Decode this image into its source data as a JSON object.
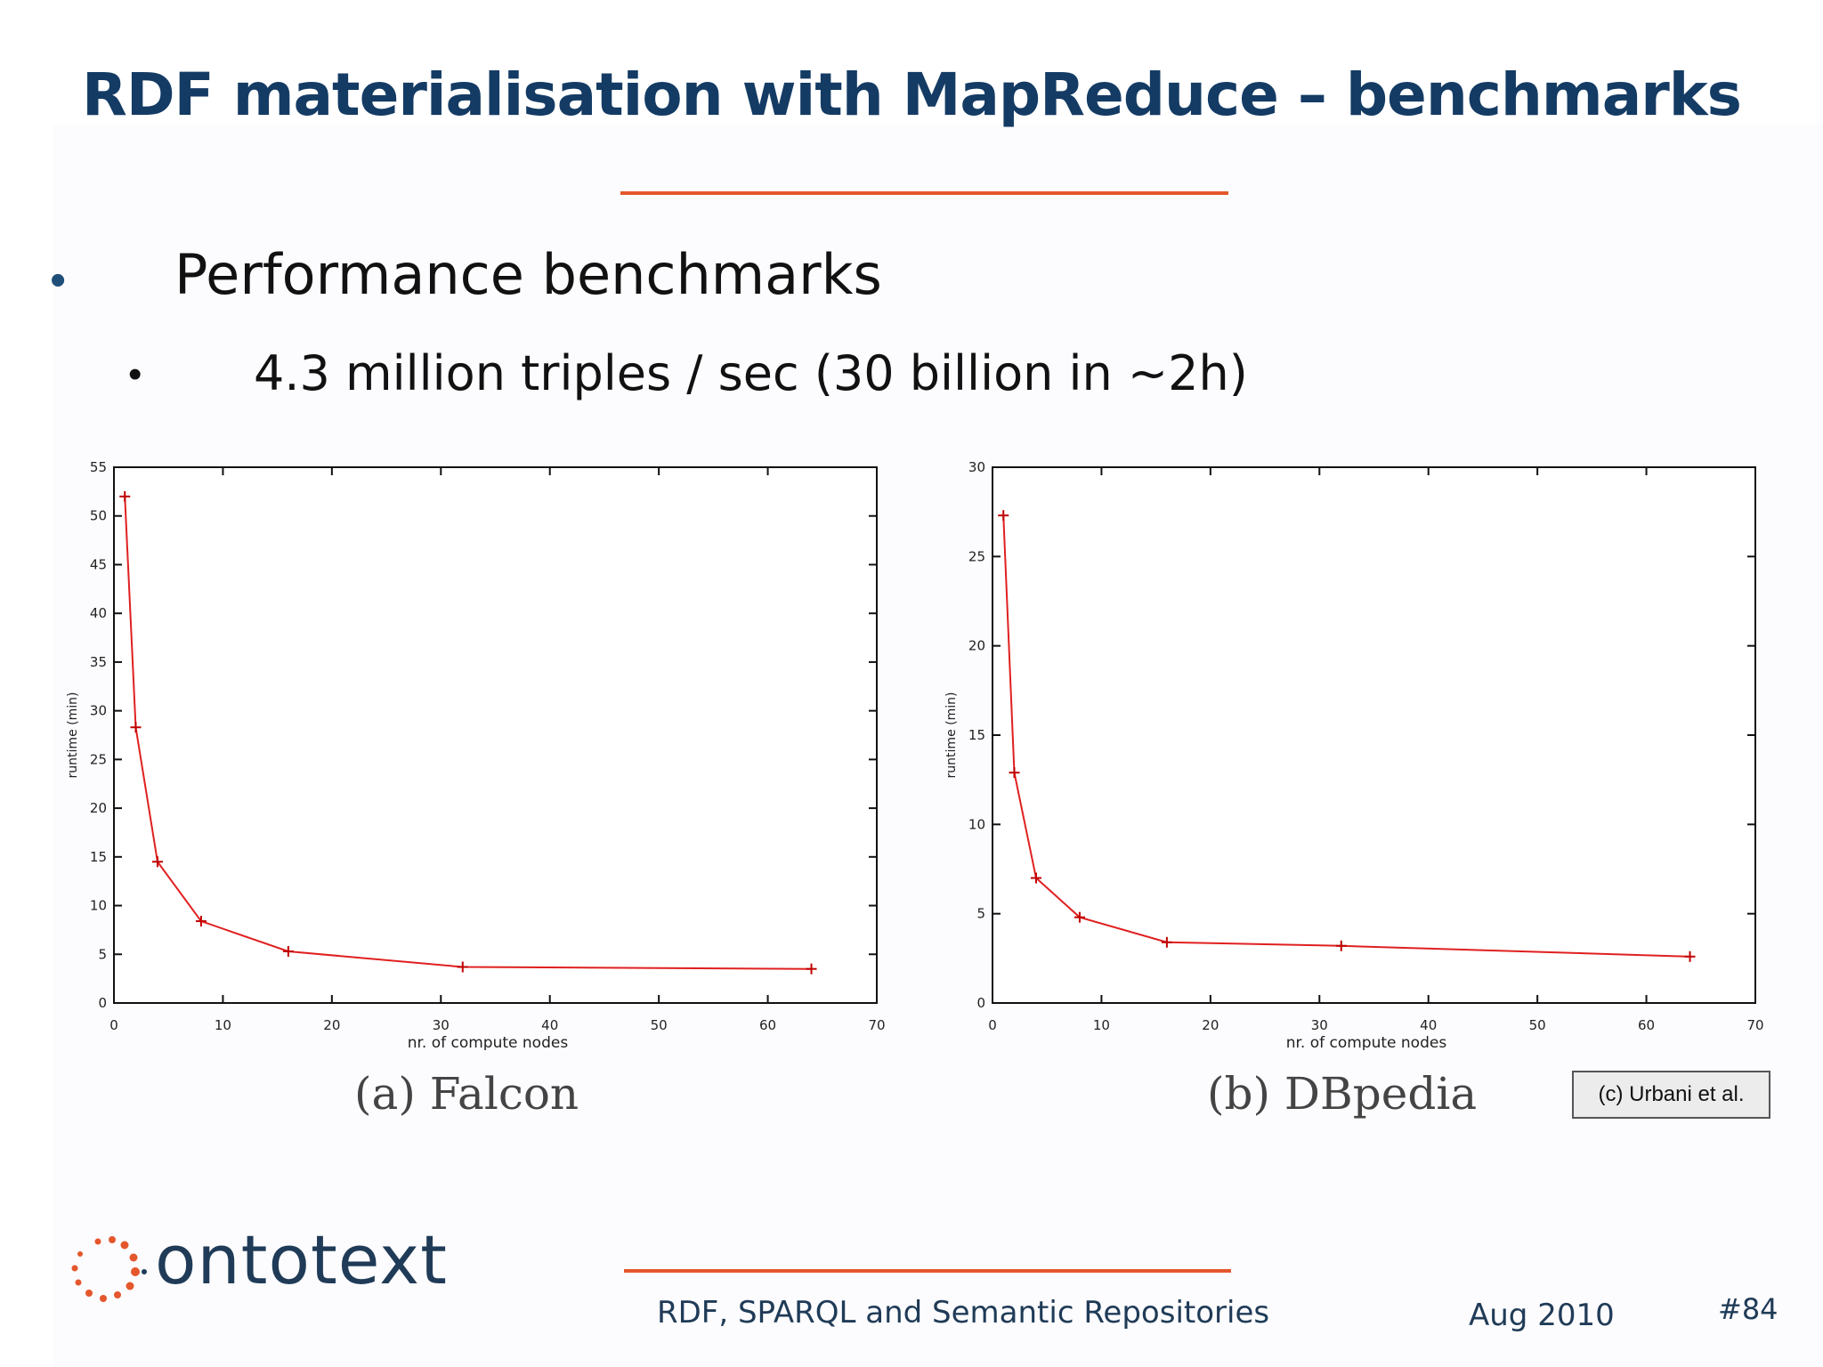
{
  "title": "RDF materialisation with MapReduce – benchmarks",
  "bullets": {
    "main": "Performance benchmarks",
    "sub": "4.3 million triples / sec (30 billion in ~2h)"
  },
  "chart_data": [
    {
      "type": "line",
      "caption": "(a) Falcon",
      "xlabel": "nr. of compute nodes",
      "ylabel": "runtime (min)",
      "xlim": [
        0,
        70
      ],
      "ylim": [
        0,
        55
      ],
      "xticks": [
        0,
        10,
        20,
        30,
        40,
        50,
        60,
        70
      ],
      "yticks": [
        0,
        5,
        10,
        15,
        20,
        25,
        30,
        35,
        40,
        45,
        50,
        55
      ],
      "series": [
        {
          "x": [
            1,
            2,
            4,
            8,
            16,
            32,
            64
          ],
          "y": [
            52,
            28.3,
            14.5,
            8.4,
            5.3,
            3.7,
            3.5
          ]
        }
      ],
      "line_color": "#e02020",
      "grid": false
    },
    {
      "type": "line",
      "caption": "(b) DBpedia",
      "xlabel": "nr. of compute nodes",
      "ylabel": "runtime (min)",
      "xlim": [
        0,
        70
      ],
      "ylim": [
        0,
        30
      ],
      "xticks": [
        0,
        10,
        20,
        30,
        40,
        50,
        60,
        70
      ],
      "yticks": [
        0,
        5,
        10,
        15,
        20,
        25,
        30
      ],
      "series": [
        {
          "x": [
            1,
            2,
            4,
            8,
            16,
            32,
            64
          ],
          "y": [
            27.3,
            12.9,
            7.0,
            4.8,
            3.4,
            3.2,
            2.6
          ]
        }
      ],
      "line_color": "#e02020",
      "grid": false
    }
  ],
  "credit": "(c) Urbani et al.",
  "logo_text": "ontotext",
  "footer": {
    "left": "RDF, SPARQL and Semantic Repositories",
    "date": "Aug 2010",
    "slide_num": "#84"
  }
}
